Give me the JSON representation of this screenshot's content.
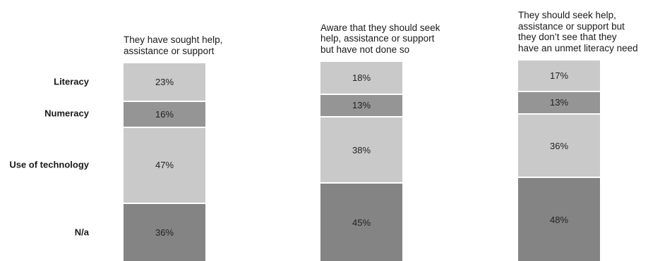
{
  "chart_data": {
    "type": "bar",
    "stacked": true,
    "percent": true,
    "categories": [
      "They have sought help,\nassistance or support",
      "Aware that they should seek\nhelp, assistance or support\nbut have not done so",
      "They should seek help,\nassistance or support but\nthey don’t see that they\nhave an unmet literacy need"
    ],
    "series": [
      {
        "name": "Literacy",
        "values": [
          23,
          18,
          17
        ],
        "color": "#c9c9c9"
      },
      {
        "name": "Numeracy",
        "values": [
          16,
          13,
          13
        ],
        "color": "#959595"
      },
      {
        "name": "Use of technology",
        "values": [
          47,
          38,
          36
        ],
        "color": "#c9c9c9"
      },
      {
        "name": "N/a",
        "values": [
          36,
          45,
          48
        ],
        "color": "#848484"
      }
    ],
    "value_suffix": "%",
    "grid": false
  }
}
